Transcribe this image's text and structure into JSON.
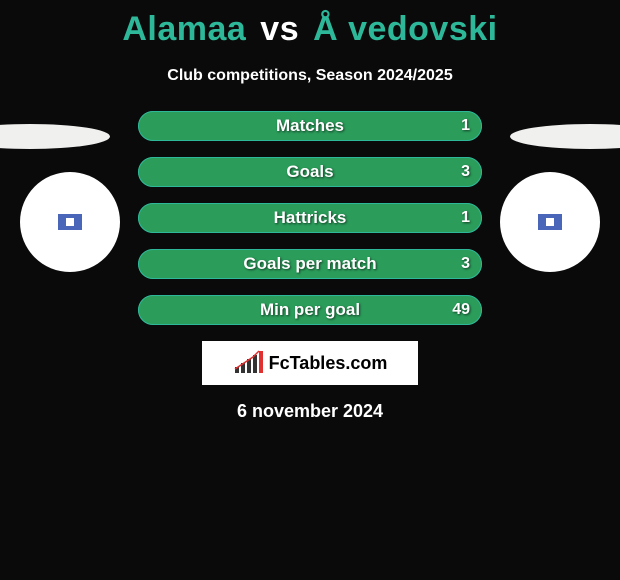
{
  "title": {
    "player1": "Alamaa",
    "vs": "vs",
    "player2": "Å vedovski",
    "color_p1": "#2eb89a",
    "color_vs": "#ffffff",
    "color_p2": "#2eb89a"
  },
  "subtitle": "Club competitions, Season 2024/2025",
  "shapes": {
    "ellipse_color": "#f0f0ef",
    "left_circle_bg": "#ffffff",
    "right_circle_bg": "#ffffff",
    "flag_badge_bg": "#4a66b8",
    "flag_inner_bg": "#ffffff"
  },
  "bars": {
    "bar_fill": "#2b9c5a",
    "bar_border": "#2eb89a",
    "label_color": "#ffffff",
    "value_color": "#ffffff",
    "rows": [
      {
        "label": "Matches",
        "value": "1"
      },
      {
        "label": "Goals",
        "value": "3"
      },
      {
        "label": "Hattricks",
        "value": "1"
      },
      {
        "label": "Goals per match",
        "value": "3"
      },
      {
        "label": "Min per goal",
        "value": "49"
      }
    ]
  },
  "fctables": {
    "box_bg": "#ffffff",
    "text": "FcTables.com",
    "chart_bars": [
      {
        "h": 6,
        "c": "#333"
      },
      {
        "h": 10,
        "c": "#333"
      },
      {
        "h": 14,
        "c": "#333"
      },
      {
        "h": 18,
        "c": "#333"
      },
      {
        "h": 22,
        "c": "#e03030"
      }
    ]
  },
  "date": "6 november 2024",
  "background": "#0a0a0a"
}
